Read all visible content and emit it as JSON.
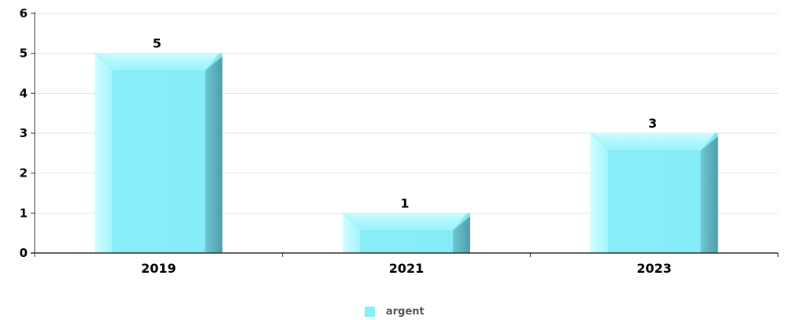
{
  "chart_data": {
    "type": "bar",
    "categories": [
      "2019",
      "2021",
      "2023"
    ],
    "series": [
      {
        "name": "argent",
        "values": [
          5,
          1,
          3
        ],
        "color": "#88eefa"
      }
    ],
    "title": "",
    "xlabel": "",
    "ylabel": "",
    "ylim": [
      0,
      6
    ],
    "yticks": [
      "0",
      "1",
      "2",
      "3",
      "4",
      "5",
      "6"
    ],
    "grid": true,
    "legend_position": "bottom-center"
  }
}
